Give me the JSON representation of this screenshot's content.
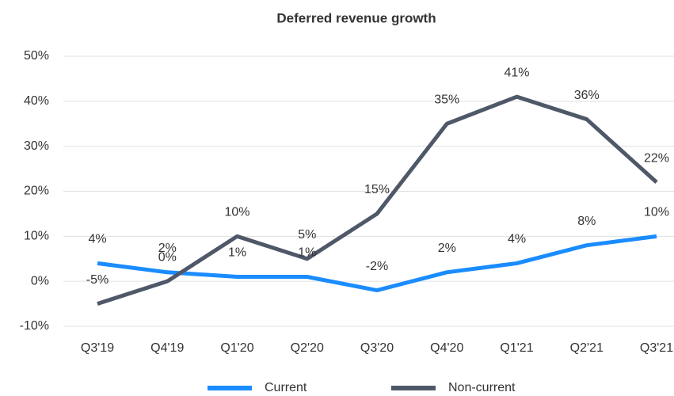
{
  "chart_data": {
    "type": "line",
    "title": "Deferred revenue growth",
    "categories": [
      "Q3'19",
      "Q4'19",
      "Q1'20",
      "Q2'20",
      "Q3'20",
      "Q4'20",
      "Q1'21",
      "Q2'21",
      "Q3'21"
    ],
    "series": [
      {
        "name": "Current",
        "color": "#1a8cff",
        "values": [
          4,
          2,
          1,
          1,
          -2,
          2,
          4,
          8,
          10
        ],
        "value_labels": [
          "4%",
          "2%",
          "1%",
          "1%",
          "-2%",
          "2%",
          "4%",
          "8%",
          "10%"
        ]
      },
      {
        "name": "Non-current",
        "color": "#4f5868",
        "values": [
          -5,
          0,
          10,
          5,
          15,
          35,
          41,
          36,
          22
        ],
        "value_labels": [
          "-5%",
          "0%",
          "10%",
          "5%",
          "15%",
          "35%",
          "41%",
          "36%",
          "22%"
        ]
      }
    ],
    "ylim": [
      -10,
      50
    ],
    "yticks": [
      {
        "value": -10,
        "label": "-10%"
      },
      {
        "value": 0,
        "label": "0%"
      },
      {
        "value": 10,
        "label": "10%"
      },
      {
        "value": 20,
        "label": "20%"
      },
      {
        "value": 30,
        "label": "30%"
      },
      {
        "value": 40,
        "label": "40%"
      },
      {
        "value": 50,
        "label": "50%"
      }
    ],
    "grid": true,
    "legend": "bottom"
  }
}
